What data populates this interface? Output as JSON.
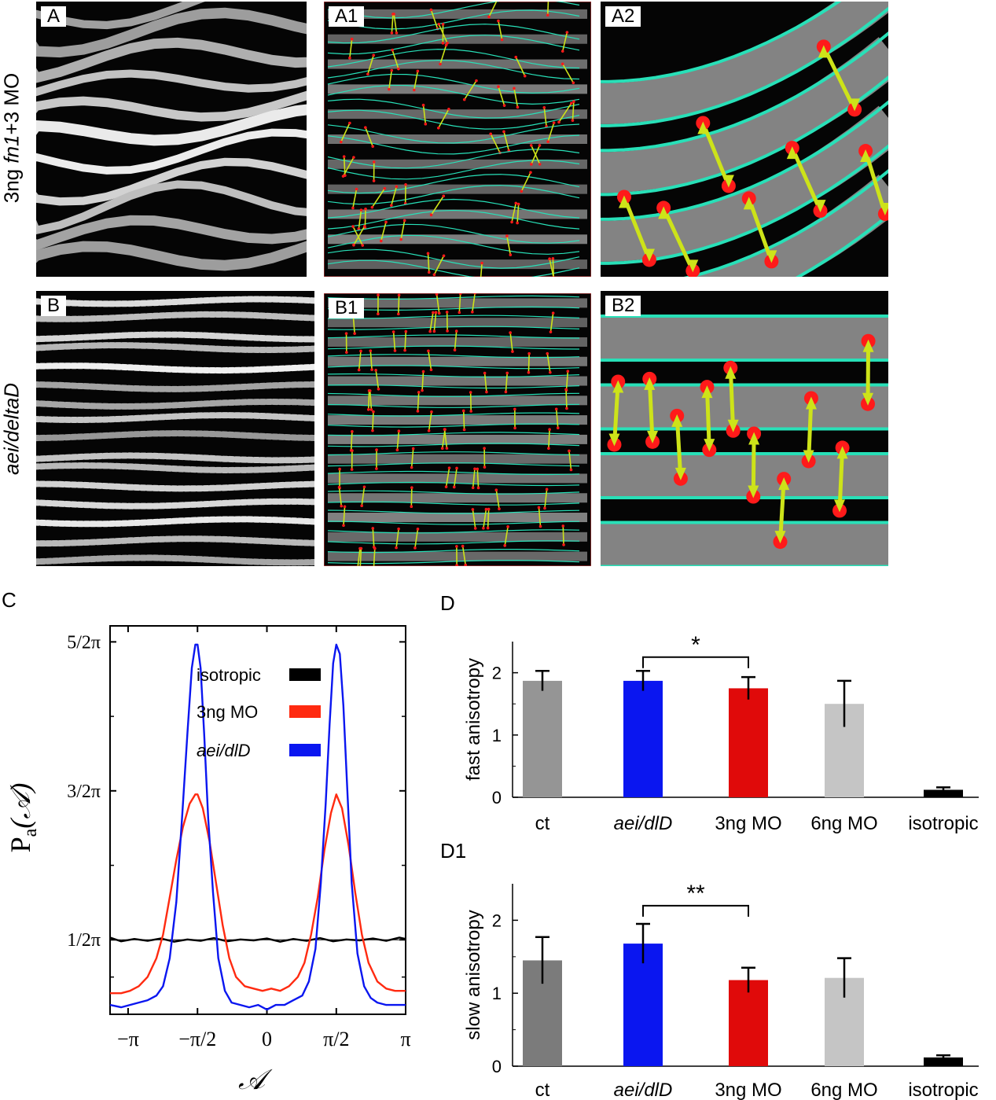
{
  "row_labels": {
    "row1": {
      "prefix": "3ng ",
      "italic": "fn1",
      "suffix": "+3 MO"
    },
    "row2": {
      "italic": "aei/deltaD"
    }
  },
  "panels": [
    {
      "id": "A",
      "label": "A",
      "kind": "raw",
      "style": "wavy"
    },
    {
      "id": "A1",
      "label": "A1",
      "kind": "annotated",
      "style": "wavy"
    },
    {
      "id": "A2",
      "label": "A2",
      "kind": "zoom",
      "style": "wavy"
    },
    {
      "id": "B",
      "label": "B",
      "kind": "raw",
      "style": "straight"
    },
    {
      "id": "B1",
      "label": "B1",
      "kind": "annotated",
      "style": "straight"
    },
    {
      "id": "B2",
      "label": "B2",
      "kind": "zoom",
      "style": "straight"
    }
  ],
  "figure_labels": {
    "C": "C",
    "D": "D",
    "D1": "D1"
  },
  "colors": {
    "contour": "#28e0b8",
    "arrow": "#cde319",
    "endpoint": "#ff1a1a",
    "isotropic": "#000000",
    "mo3ng": "#ff2a10",
    "aei": "#0a16f0",
    "ct_fast": "#959595",
    "ct_slow": "#7b7b7b",
    "mo6ng": "#c5c5c5"
  },
  "chart_data": [
    {
      "id": "C",
      "type": "line",
      "xlabel": "𝒜",
      "ylabel_main": "P",
      "ylabel_sub": "a",
      "ylabel_arg": "(𝒜)",
      "xlim": [
        -3.55,
        3.14
      ],
      "ylim": [
        0,
        0.83
      ],
      "x_ticks": [
        {
          "value": -3.1416,
          "label": "−π"
        },
        {
          "value": -1.5708,
          "label": "−π/2"
        },
        {
          "value": 0,
          "label": "0"
        },
        {
          "value": 1.5708,
          "label": "π/2"
        },
        {
          "value": 3.1416,
          "label": "π"
        }
      ],
      "y_ticks": [
        {
          "value": 0.1592,
          "label": "1/2π"
        },
        {
          "value": 0.4775,
          "label": "3/2π"
        },
        {
          "value": 0.7958,
          "label": "5/2π"
        }
      ],
      "reference_line": 0.1592,
      "legend": [
        {
          "label": "isotropic",
          "italic": false,
          "color": "#000000"
        },
        {
          "label": "3ng MO",
          "italic": false,
          "color": "#ff2a10"
        },
        {
          "label": "aei/dlD",
          "italic": true,
          "color": "#0a16f0"
        }
      ],
      "series": [
        {
          "name": "isotropic",
          "color": "#000000",
          "x": [
            -3.55,
            -3.3,
            -3.0,
            -2.7,
            -2.4,
            -2.1,
            -1.8,
            -1.5,
            -1.2,
            -0.9,
            -0.6,
            -0.3,
            0.0,
            0.3,
            0.6,
            0.9,
            1.2,
            1.5,
            1.8,
            2.1,
            2.4,
            2.7,
            3.0,
            3.14
          ],
          "y": [
            0.164,
            0.156,
            0.161,
            0.157,
            0.162,
            0.155,
            0.16,
            0.157,
            0.163,
            0.156,
            0.16,
            0.158,
            0.162,
            0.155,
            0.161,
            0.157,
            0.163,
            0.156,
            0.16,
            0.158,
            0.162,
            0.157,
            0.164,
            0.161
          ]
        },
        {
          "name": "3ng MO",
          "color": "#ff2a10",
          "x": [
            -3.55,
            -3.3,
            -3.1,
            -2.9,
            -2.7,
            -2.5,
            -2.35,
            -2.2,
            -2.05,
            -1.9,
            -1.75,
            -1.62,
            -1.57,
            -1.45,
            -1.3,
            -1.15,
            -1.0,
            -0.85,
            -0.7,
            -0.5,
            -0.3,
            -0.1,
            0.1,
            0.3,
            0.5,
            0.7,
            0.85,
            1.0,
            1.15,
            1.3,
            1.45,
            1.57,
            1.7,
            1.85,
            2.0,
            2.15,
            2.3,
            2.5,
            2.7,
            2.9,
            3.14
          ],
          "y": [
            0.045,
            0.045,
            0.05,
            0.06,
            0.08,
            0.12,
            0.17,
            0.25,
            0.33,
            0.4,
            0.45,
            0.47,
            0.47,
            0.44,
            0.37,
            0.28,
            0.19,
            0.12,
            0.08,
            0.06,
            0.055,
            0.05,
            0.055,
            0.05,
            0.06,
            0.08,
            0.11,
            0.17,
            0.25,
            0.35,
            0.43,
            0.47,
            0.44,
            0.36,
            0.26,
            0.17,
            0.11,
            0.07,
            0.055,
            0.05,
            0.05
          ]
        },
        {
          "name": "aei/dlD",
          "color": "#0a16f0",
          "x": [
            -3.55,
            -3.3,
            -3.1,
            -2.9,
            -2.7,
            -2.5,
            -2.35,
            -2.2,
            -2.05,
            -1.92,
            -1.8,
            -1.7,
            -1.62,
            -1.57,
            -1.5,
            -1.42,
            -1.33,
            -1.22,
            -1.1,
            -0.95,
            -0.8,
            -0.6,
            -0.4,
            -0.2,
            0.0,
            0.2,
            0.4,
            0.6,
            0.8,
            0.95,
            1.1,
            1.22,
            1.33,
            1.42,
            1.5,
            1.57,
            1.65,
            1.73,
            1.82,
            1.92,
            2.05,
            2.2,
            2.35,
            2.5,
            2.7,
            2.9,
            3.14
          ],
          "y": [
            0.02,
            0.015,
            0.02,
            0.025,
            0.03,
            0.04,
            0.06,
            0.12,
            0.24,
            0.42,
            0.6,
            0.74,
            0.79,
            0.79,
            0.74,
            0.6,
            0.42,
            0.26,
            0.12,
            0.05,
            0.025,
            0.02,
            0.015,
            0.02,
            0.01,
            0.02,
            0.02,
            0.03,
            0.04,
            0.07,
            0.14,
            0.28,
            0.45,
            0.62,
            0.75,
            0.79,
            0.77,
            0.66,
            0.48,
            0.28,
            0.13,
            0.06,
            0.035,
            0.025,
            0.02,
            0.02,
            0.02
          ]
        }
      ]
    },
    {
      "id": "D",
      "type": "bar",
      "ylabel": "fast anisotropy",
      "ylim": [
        0,
        2.5
      ],
      "y_ticks": [
        0,
        1,
        2
      ],
      "categories": [
        {
          "label": "ct",
          "italic": false
        },
        {
          "label": "aei/dlD",
          "italic": true
        },
        {
          "label": "3ng MO",
          "italic": false
        },
        {
          "label": "6ng MO",
          "italic": false
        },
        {
          "label": "isotropic",
          "italic": false
        }
      ],
      "values": [
        1.87,
        1.87,
        1.75,
        1.5,
        0.12
      ],
      "errors": [
        0.16,
        0.16,
        0.18,
        0.37,
        0.04
      ],
      "colors": [
        "#959595",
        "#0a16f0",
        "#e00a0a",
        "#c5c5c5",
        "#000000"
      ],
      "significance": {
        "from": 1,
        "to": 2,
        "y": 2.25,
        "label": "*"
      }
    },
    {
      "id": "D1",
      "type": "bar",
      "ylabel": "slow  anisotropy",
      "ylim": [
        0,
        2.5
      ],
      "y_ticks": [
        0,
        1,
        2
      ],
      "categories": [
        {
          "label": "ct",
          "italic": false
        },
        {
          "label": "aei/dlD",
          "italic": true
        },
        {
          "label": "3ng MO",
          "italic": false
        },
        {
          "label": "6ng MO",
          "italic": false
        },
        {
          "label": "isotropic",
          "italic": false
        }
      ],
      "values": [
        1.45,
        1.68,
        1.18,
        1.21,
        0.12
      ],
      "errors": [
        0.32,
        0.27,
        0.17,
        0.27,
        0.03
      ],
      "colors": [
        "#7b7b7b",
        "#0a16f0",
        "#e00a0a",
        "#c5c5c5",
        "#000000"
      ],
      "significance": {
        "from": 1,
        "to": 2,
        "y": 2.2,
        "label": "**"
      }
    }
  ]
}
